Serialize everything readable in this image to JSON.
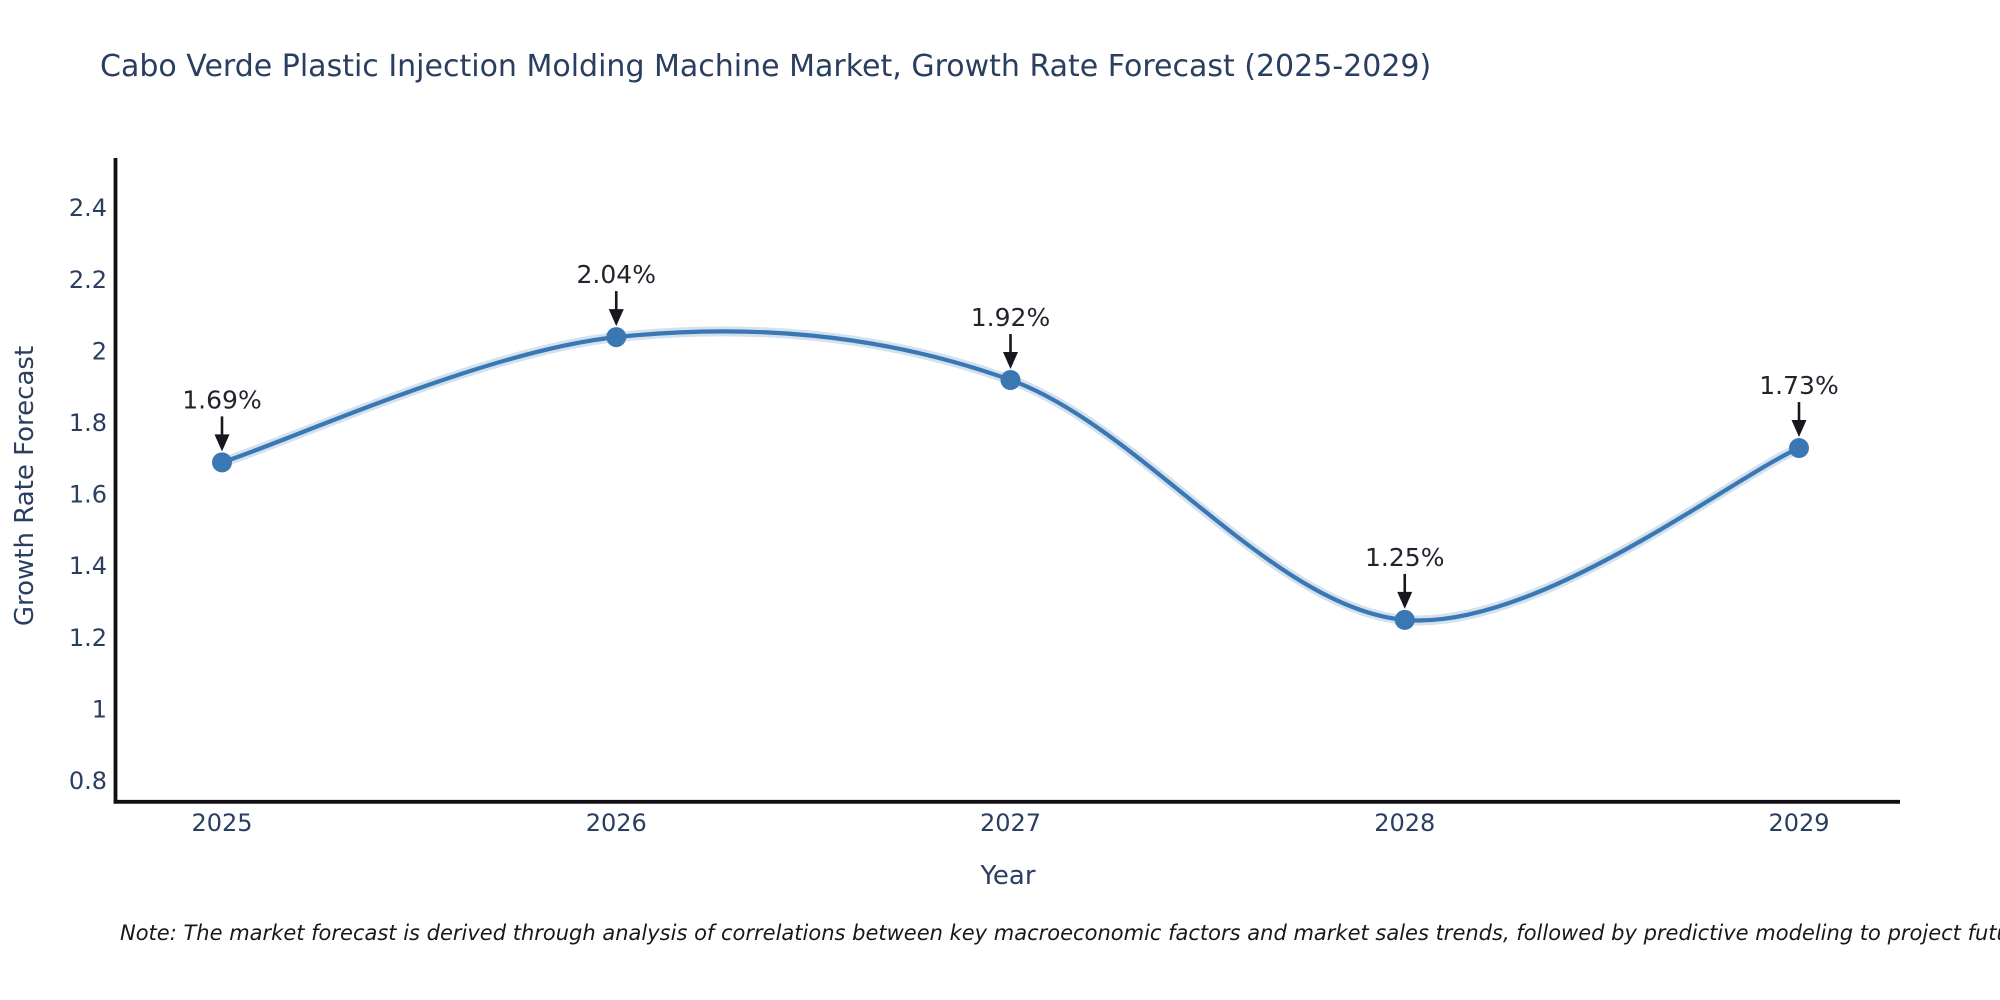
{
  "page": {
    "background": "#ffffff"
  },
  "title": {
    "text": "Cabo Verde Plastic Injection Molding Machine Market, Growth Rate Forecast (2025-2029)"
  },
  "chart_data": {
    "type": "line",
    "line_shape": "spline",
    "title": "Cabo Verde Plastic Injection Molding Machine Market, Growth Rate Forecast (2025-2029)",
    "xlabel": "Year",
    "ylabel": "Growth Rate Forecast",
    "x": [
      2025,
      2026,
      2027,
      2028,
      2029
    ],
    "values": [
      1.69,
      2.04,
      1.92,
      1.25,
      1.73
    ],
    "point_labels": [
      "1.69%",
      "2.04%",
      "1.92%",
      "1.25%",
      "1.73%"
    ],
    "xtick_labels": [
      "2025",
      "2026",
      "2027",
      "2028",
      "2029"
    ],
    "ytick_values": [
      0.8,
      1,
      1.2,
      1.4,
      1.6,
      1.8,
      2,
      2.2,
      2.4
    ],
    "ytick_labels": [
      "0.8",
      "1",
      "1.2",
      "1.4",
      "1.6",
      "1.8",
      "2",
      "2.2",
      "2.4"
    ],
    "xlim": [
      2024.73,
      2029.26
    ],
    "ylim": [
      0.744,
      2.55
    ],
    "grid": false,
    "legend": "none",
    "markers": true,
    "annotations_have_arrows": true
  },
  "note": {
    "text": "Note: The market forecast is derived through analysis of correlations between key macroeconomic factors and market sales trends, followed by predictive modeling to project future sales"
  },
  "colors": {
    "line": "#3a78b3",
    "line_halo": "#3a78b3",
    "marker": "#3a78b3",
    "axis_spine": "#101014",
    "axis_text": "#2a3f5f",
    "annotation_text": "#20242c",
    "annotation_arrow": "#16181d",
    "note_text": "#16181d",
    "background": "#ffffff"
  }
}
